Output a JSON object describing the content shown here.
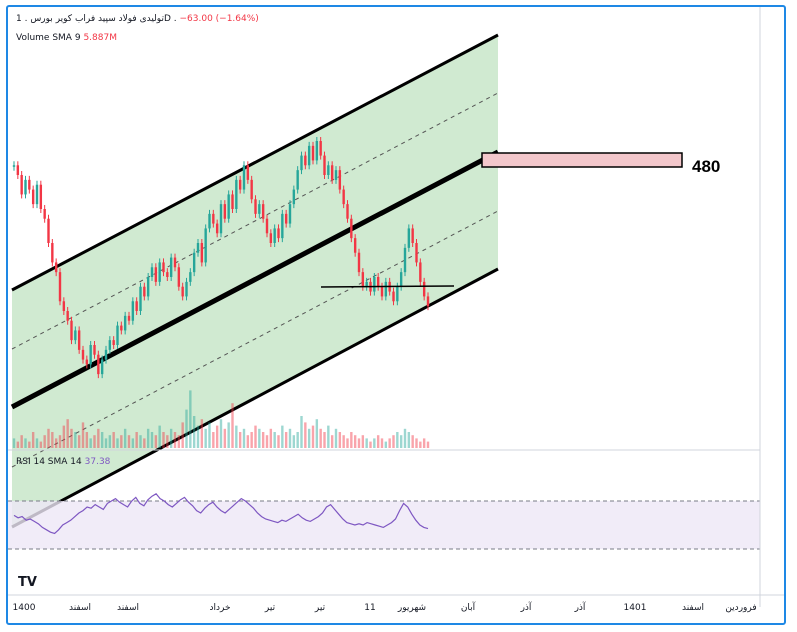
{
  "header": {
    "symbol": "تولیدی فولاد سپید فراب کویر",
    "meta": "بورس . 1D .",
    "change": "−63.00 (−1.64%)",
    "volume_label": "Volume SMA 9",
    "volume_value": "5.887M"
  },
  "rsi": {
    "label": "RSI 14 SMA 14",
    "value": "37.38"
  },
  "annotation": {
    "target_label": "480"
  },
  "logo": "TV",
  "colors": {
    "up": "#26a69a",
    "down": "#f23645",
    "channel_fill": "#c8e6c9",
    "target_zone": "#f3c7cb",
    "rsi_line": "#7e57c2",
    "rsi_band": "#ede7f6",
    "frame": "#1e88e5"
  },
  "chart_data": {
    "type": "candlestick",
    "timeframe": "1D",
    "x_tick_labels": [
      "1400",
      "اسفند",
      "اسفند",
      "خرداد",
      "تیر",
      "تیر",
      "11",
      "شهریور",
      "آبان",
      "آذر",
      "آذر",
      "1401",
      "اسفند",
      "فروردین"
    ],
    "price_series": [
      58,
      56,
      52,
      55,
      53,
      50,
      54,
      49,
      47,
      42,
      38,
      36,
      30,
      28,
      26,
      22,
      24,
      20,
      18,
      17,
      21,
      19,
      15,
      18,
      20,
      22,
      21,
      25,
      24,
      27,
      26,
      30,
      28,
      33,
      31,
      35,
      37,
      34,
      38,
      36,
      35,
      39,
      37,
      33,
      31,
      34,
      36,
      40,
      42,
      38,
      45,
      48,
      46,
      44,
      50,
      47,
      52,
      49,
      55,
      53,
      58,
      55,
      51,
      48,
      50,
      47,
      44,
      42,
      45,
      43,
      48,
      46,
      50,
      53,
      57,
      60,
      58,
      62,
      59,
      63,
      60,
      56,
      58,
      55,
      57,
      53,
      50,
      47,
      43,
      40,
      36,
      33,
      34,
      32,
      35,
      33,
      31,
      34,
      32,
      30,
      33,
      36,
      41,
      45,
      42,
      38,
      34,
      31,
      29
    ],
    "volume_series": [
      3,
      2,
      4,
      3,
      2,
      5,
      3,
      2,
      4,
      6,
      5,
      3,
      4,
      7,
      9,
      6,
      5,
      4,
      8,
      5,
      3,
      4,
      6,
      5,
      3,
      4,
      5,
      3,
      4,
      6,
      4,
      3,
      5,
      4,
      3,
      6,
      5,
      4,
      7,
      5,
      4,
      6,
      5,
      4,
      8,
      12,
      18,
      10,
      7,
      9,
      6,
      8,
      5,
      7,
      9,
      6,
      8,
      14,
      7,
      5,
      6,
      4,
      5,
      7,
      6,
      5,
      4,
      6,
      5,
      4,
      7,
      5,
      6,
      4,
      5,
      10,
      8,
      6,
      7,
      9,
      6,
      5,
      7,
      4,
      6,
      5,
      4,
      3,
      5,
      4,
      3,
      4,
      3,
      2,
      3,
      4,
      3,
      2,
      3,
      4,
      5,
      4,
      6,
      5,
      4,
      3,
      2,
      3,
      2
    ],
    "rsi_series": [
      48,
      46,
      47,
      44,
      45,
      43,
      41,
      38,
      36,
      34,
      33,
      36,
      40,
      42,
      44,
      47,
      50,
      52,
      55,
      54,
      57,
      55,
      53,
      58,
      60,
      62,
      59,
      57,
      55,
      60,
      63,
      58,
      56,
      61,
      64,
      66,
      62,
      60,
      57,
      55,
      58,
      61,
      63,
      59,
      56,
      52,
      50,
      54,
      57,
      59,
      55,
      52,
      50,
      53,
      56,
      59,
      62,
      60,
      57,
      54,
      50,
      47,
      45,
      44,
      43,
      42,
      44,
      43,
      45,
      47,
      49,
      46,
      44,
      43,
      45,
      47,
      50,
      55,
      57,
      53,
      49,
      45,
      42,
      41,
      40,
      41,
      40,
      42,
      41,
      40,
      39,
      38,
      40,
      42,
      45,
      52,
      58,
      55,
      49,
      44,
      40,
      38,
      37
    ],
    "rsi_bands": [
      70,
      30
    ],
    "annotations": [
      "ascending channel",
      "target 480",
      "support line"
    ]
  }
}
